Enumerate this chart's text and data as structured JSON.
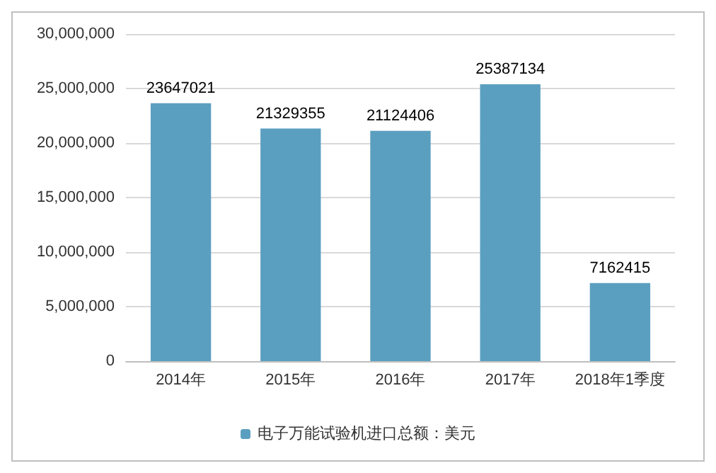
{
  "chart_data": {
    "type": "bar",
    "categories": [
      "2014年",
      "2015年",
      "2016年",
      "2017年",
      "2018年1季度"
    ],
    "series": [
      {
        "name": "电子万能试验机进口总额：美元",
        "color": "#5b9fc0",
        "values": [
          23647021,
          21329355,
          21124406,
          25387134,
          7162415
        ]
      }
    ],
    "ylim": [
      0,
      30000000
    ],
    "yticks": [
      0,
      {
        "value": 5000000,
        "label": "5,000,000"
      },
      {
        "value": 10000000,
        "label": "10,000,000"
      },
      {
        "value": 15000000,
        "label": "15,000,000"
      },
      {
        "value": 20000000,
        "label": "20,000,000"
      },
      {
        "value": 25000000,
        "label": "25,000,000"
      },
      {
        "value": 30000000,
        "label": "30,000,000"
      }
    ],
    "grid": "y",
    "legend": "bottom",
    "data_labels": true
  }
}
